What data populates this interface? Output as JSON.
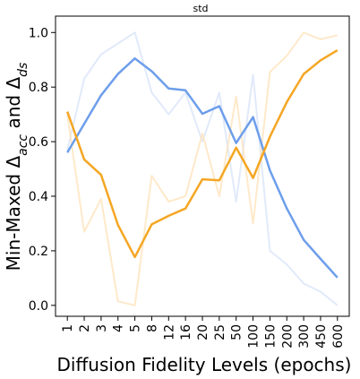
{
  "chart_data": {
    "type": "line",
    "title": "std",
    "xlabel": "Diffusion Fidelity Levels (epochs)",
    "ylabel": {
      "prefix": "Min-Maxed ",
      "sym1": "Δ",
      "sub1": "acc",
      "mid": " and ",
      "sym2": "Δ",
      "sub2": "ds"
    },
    "categories": [
      "1",
      "2",
      "3",
      "4",
      "5",
      "8",
      "12",
      "16",
      "20",
      "25",
      "50",
      "100",
      "150",
      "200",
      "300",
      "450",
      "600"
    ],
    "ylim": [
      -0.04,
      1.06
    ],
    "yticks": [
      "0.0",
      "0.2",
      "0.4",
      "0.6",
      "0.8",
      "1.0"
    ],
    "grid": false,
    "series": [
      {
        "color": "#6d9eeb",
        "opacity": 1,
        "width": 2.5,
        "values": [
          0.56,
          0.665,
          0.77,
          0.848,
          0.905,
          0.858,
          0.795,
          0.788,
          0.702,
          0.73,
          0.595,
          0.69,
          0.495,
          0.355,
          0.24,
          0.17,
          0.102
        ]
      },
      {
        "color": "#f5a623",
        "opacity": 1,
        "width": 2.5,
        "values": [
          0.71,
          0.535,
          0.478,
          0.295,
          0.177,
          0.297,
          0.328,
          0.355,
          0.462,
          0.458,
          0.578,
          0.467,
          0.618,
          0.745,
          0.848,
          0.898,
          0.935
        ]
      },
      {
        "color": "#c9d9f5",
        "opacity": 0.55,
        "width": 2,
        "values": [
          0.57,
          0.83,
          0.92,
          0.96,
          1.0,
          0.78,
          0.7,
          0.78,
          0.6,
          0.78,
          0.38,
          0.845,
          0.2,
          0.15,
          0.08,
          0.05,
          0.0
        ]
      },
      {
        "color": "#fde2b8",
        "opacity": 0.75,
        "width": 2,
        "values": [
          0.7,
          0.27,
          0.39,
          0.015,
          0.0,
          0.475,
          0.38,
          0.4,
          0.63,
          0.4,
          0.765,
          0.3,
          0.855,
          0.915,
          1.0,
          0.975,
          0.99
        ]
      }
    ]
  }
}
